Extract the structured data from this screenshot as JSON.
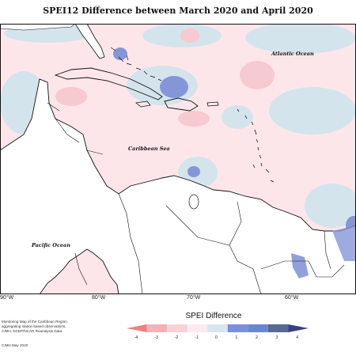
{
  "title": "SPEI12 Difference between March 2020 and April 2020",
  "labels": {
    "atlantic": "Atlantic Ocean",
    "caribbean": "Caribbean Sea",
    "pacific": "Pacific Ocean"
  },
  "longitudes": [
    "90°W",
    "80°W",
    "70°W",
    "60°W"
  ],
  "legend": {
    "title": "SPEI Difference",
    "ticks": [
      "-4",
      "-3",
      "-2",
      "-1",
      "0",
      "1",
      "2",
      "3",
      "4"
    ],
    "colors": [
      "#f08080",
      "#f4b2b6",
      "#f8d2d6",
      "#fdeaee",
      "#d8e6ee",
      "#7b8fdc",
      "#6a86d0",
      "#556a94",
      "#3a3f86"
    ]
  },
  "credits": {
    "line1": "Monitoring Map of the Caribbean Region.",
    "line2": "aggregating station based observations,",
    "line3": "CIMH, NCEP/NCAR Reanalysis Data",
    "date": "CIMH May 2020"
  }
}
